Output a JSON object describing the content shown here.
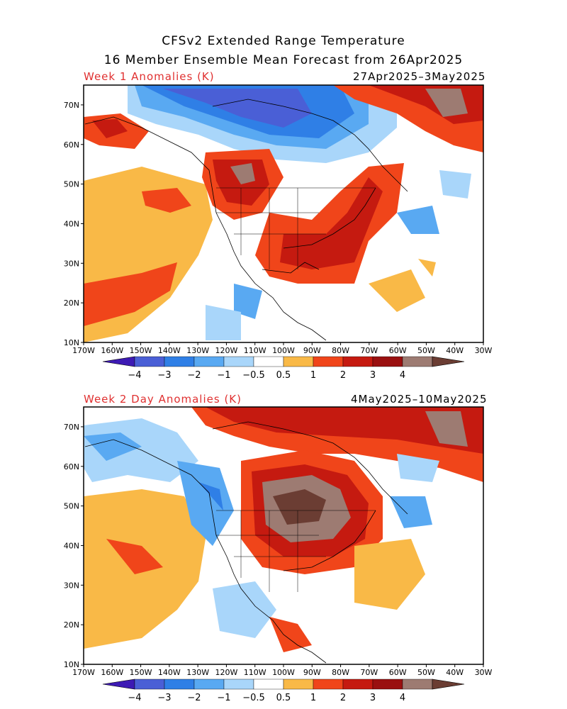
{
  "header": {
    "title_line1": "CFSv2 Extended Range Temperature",
    "title_line2": "16 Member Ensemble Mean Forecast from 26Apr2025"
  },
  "panels": [
    {
      "label": "Week 1 Anomalies (K)",
      "dates": "27Apr2025–3May2025"
    },
    {
      "label": "Week 2 Day Anomalies (K)",
      "dates": "4May2025–10May2025"
    }
  ],
  "axes": {
    "lat_labels": [
      "70N",
      "60N",
      "50N",
      "40N",
      "30N",
      "20N",
      "10N"
    ],
    "lon_labels": [
      "170W",
      "160W",
      "150W",
      "140W",
      "130W",
      "120W",
      "110W",
      "100W",
      "90W",
      "80W",
      "70W",
      "60W",
      "50W",
      "40W",
      "30W"
    ]
  },
  "colorbar": {
    "tick_labels": [
      "−4",
      "−3",
      "−2",
      "−1",
      "−0.5",
      "0.5",
      "1",
      "2",
      "3",
      "4"
    ],
    "colors": [
      "#3d1ab4",
      "#4a5fd6",
      "#2f7fe6",
      "#59a9f2",
      "#a9d6fa",
      "#ffffff",
      "#f9b947",
      "#f0451a",
      "#c51a10",
      "#9a1010",
      "#9d7b72",
      "#6b3d33"
    ]
  }
}
